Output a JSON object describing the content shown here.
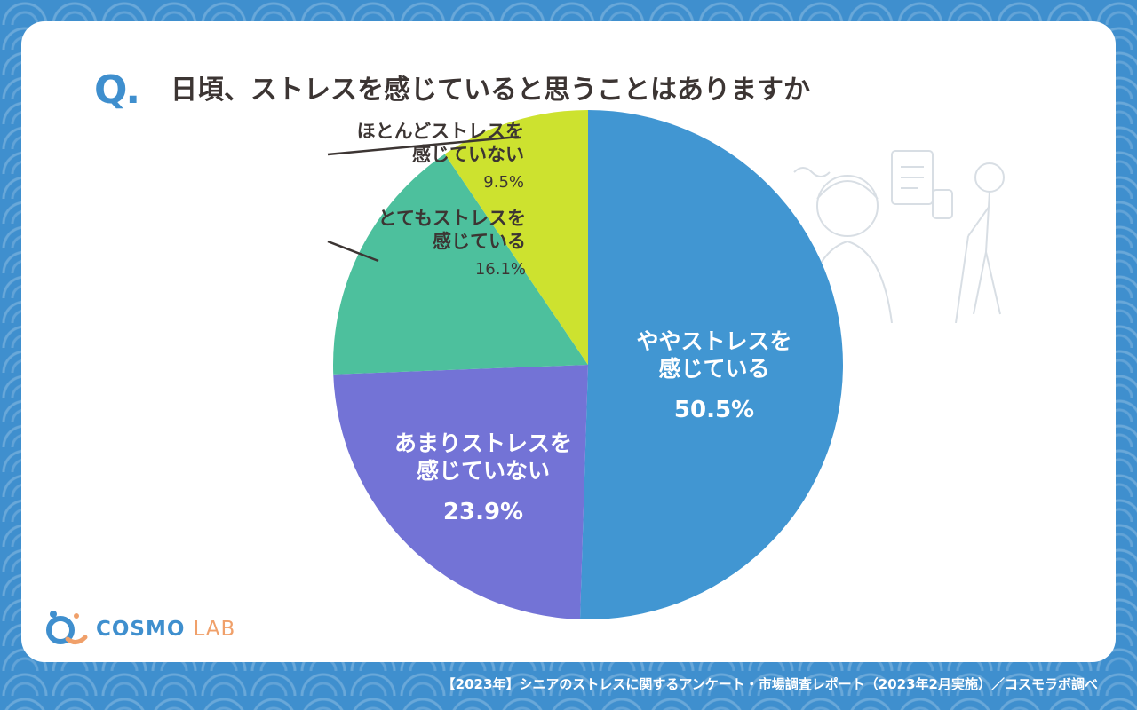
{
  "question": {
    "mark": "Q",
    "dot": ".",
    "text": "日頃、ストレスを感じていると思うことはありますか"
  },
  "chart_data": {
    "type": "pie",
    "start_angle_deg": 0,
    "direction": "clockwise",
    "slices": [
      {
        "lines": [
          "ややストレスを",
          "感じている"
        ],
        "value": 50.5,
        "label": "50.5%",
        "color": "#4196d2"
      },
      {
        "lines": [
          "あまりストレスを",
          "感じていない"
        ],
        "value": 23.9,
        "label": "23.9%",
        "color": "#7373d6"
      },
      {
        "lines": [
          "とてもストレスを",
          "感じている"
        ],
        "value": 16.1,
        "label": "16.1%",
        "color": "#4dc09d"
      },
      {
        "lines": [
          "ほとんどストレスを",
          "感じていない"
        ],
        "value": 9.5,
        "label": "9.5%",
        "color": "#cde22f"
      }
    ]
  },
  "logo": {
    "main": "COSMO",
    "sub": "LAB"
  },
  "footer": "【2023年】シニアのストレスに関するアンケート・市場調査レポート（2023年2月実施）／コスモラボ調べ"
}
